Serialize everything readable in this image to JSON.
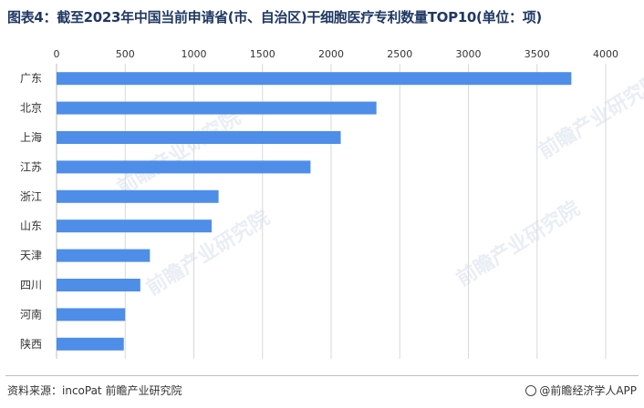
{
  "title": "图表4：截至2023年中国当前申请省(市、自治区)干细胞医疗专利数量TOP10(单位：项)",
  "footer": {
    "source": "资料来源：incoPat 前瞻产业研究院",
    "brand": "@前瞻经济学人APP"
  },
  "watermark": "前瞻产业研究院",
  "colors": {
    "bar": "#4e8ee8",
    "grid": "#d9d9d9",
    "title": "#1f3864"
  },
  "chart_data": {
    "type": "bar",
    "orientation": "horizontal",
    "title": "图表4：截至2023年中国当前申请省(市、自治区)干细胞医疗专利数量TOP10(单位：项)",
    "xlabel": "",
    "ylabel": "",
    "xlim": [
      0,
      4000
    ],
    "xticks": [
      0,
      500,
      1000,
      1500,
      2000,
      2500,
      3000,
      3500,
      4000
    ],
    "axis_position": "top",
    "grid": true,
    "legend": "none",
    "categories": [
      "广东",
      "北京",
      "上海",
      "江苏",
      "浙江",
      "山东",
      "天津",
      "四川",
      "河南",
      "陕西"
    ],
    "values": [
      3750,
      2330,
      2070,
      1850,
      1180,
      1130,
      680,
      610,
      500,
      490
    ]
  }
}
